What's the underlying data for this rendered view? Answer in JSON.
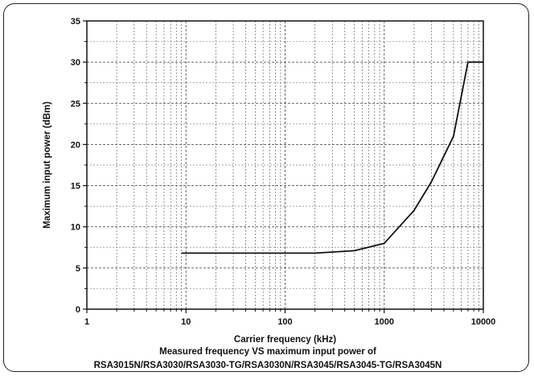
{
  "chart_data": {
    "type": "line",
    "xlabel": "Carrier frequency (kHz)",
    "ylabel": "Maximum input power (dBm)",
    "x_scale": "log",
    "xlim": [
      1,
      10000
    ],
    "ylim": [
      0,
      35
    ],
    "x_ticks": [
      1,
      10,
      100,
      1000,
      10000
    ],
    "x_tick_labels": [
      "1",
      "10",
      "100",
      "1000",
      "10000"
    ],
    "y_ticks": [
      0,
      5,
      10,
      15,
      20,
      25,
      30,
      35
    ],
    "y_tick_labels": [
      "0",
      "5",
      "10",
      "15",
      "20",
      "25",
      "30",
      "35"
    ],
    "grid": true,
    "line_color": "#111111",
    "series": [
      {
        "x": [
          9,
          100,
          200,
          500,
          1000,
          2000,
          3000,
          5000,
          7000,
          10000
        ],
        "y": [
          6.8,
          6.8,
          6.8,
          7.1,
          8.0,
          12.0,
          15.5,
          21.0,
          30.0,
          30.0
        ]
      }
    ],
    "caption_lines": [
      "Measured frequency VS maximum input power of",
      "RSA3015N/RSA3030/RSA3030-TG/RSA3030N/RSA3045/RSA3045-TG/RSA3045N"
    ]
  }
}
